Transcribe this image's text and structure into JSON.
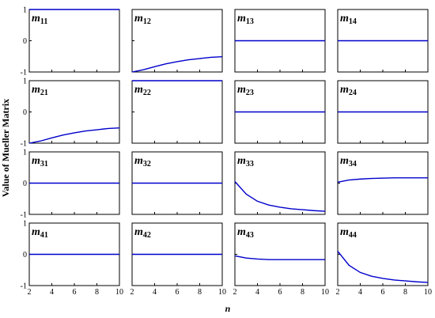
{
  "chart_data": {
    "type": "line",
    "title": "",
    "xlabel": "n",
    "ylabel": "Value of Mueller Matrix",
    "xlim": [
      2,
      10
    ],
    "ylim": [
      -1,
      1
    ],
    "x_ticks": [
      2,
      4,
      6,
      8,
      10
    ],
    "y_ticks": [
      -1,
      0,
      1
    ],
    "grid": false,
    "x": [
      2,
      3,
      4,
      5,
      6,
      7,
      8,
      9,
      10
    ],
    "panels": [
      {
        "name": "m",
        "sub": "11",
        "values": [
          1,
          1,
          1,
          1,
          1,
          1,
          1,
          1,
          1
        ]
      },
      {
        "name": "m",
        "sub": "12",
        "values": [
          -1,
          -0.93,
          -0.83,
          -0.74,
          -0.67,
          -0.61,
          -0.57,
          -0.53,
          -0.51
        ]
      },
      {
        "name": "m",
        "sub": "13",
        "values": [
          0,
          0,
          0,
          0,
          0,
          0,
          0,
          0,
          0
        ]
      },
      {
        "name": "m",
        "sub": "14",
        "values": [
          0,
          0,
          0,
          0,
          0,
          0,
          0,
          0,
          0
        ]
      },
      {
        "name": "m",
        "sub": "21",
        "values": [
          -1,
          -0.93,
          -0.83,
          -0.74,
          -0.67,
          -0.61,
          -0.57,
          -0.53,
          -0.51
        ]
      },
      {
        "name": "m",
        "sub": "22",
        "values": [
          1,
          1,
          1,
          1,
          1,
          1,
          1,
          1,
          1
        ]
      },
      {
        "name": "m",
        "sub": "23",
        "values": [
          0,
          0,
          0,
          0,
          0,
          0,
          0,
          0,
          0
        ]
      },
      {
        "name": "m",
        "sub": "24",
        "values": [
          0,
          0,
          0,
          0,
          0,
          0,
          0,
          0,
          0
        ]
      },
      {
        "name": "m",
        "sub": "31",
        "values": [
          0,
          0,
          0,
          0,
          0,
          0,
          0,
          0,
          0
        ]
      },
      {
        "name": "m",
        "sub": "32",
        "values": [
          0,
          0,
          0,
          0,
          0,
          0,
          0,
          0,
          0
        ]
      },
      {
        "name": "m",
        "sub": "33",
        "values": [
          0.05,
          -0.35,
          -0.58,
          -0.7,
          -0.77,
          -0.82,
          -0.85,
          -0.88,
          -0.9
        ]
      },
      {
        "name": "m",
        "sub": "34",
        "values": [
          0.03,
          0.1,
          0.13,
          0.15,
          0.16,
          0.17,
          0.17,
          0.17,
          0.17
        ]
      },
      {
        "name": "m",
        "sub": "41",
        "values": [
          0,
          0,
          0,
          0,
          0,
          0,
          0,
          0,
          0
        ]
      },
      {
        "name": "m",
        "sub": "42",
        "values": [
          0,
          0,
          0,
          0,
          0,
          0,
          0,
          0,
          0
        ]
      },
      {
        "name": "m",
        "sub": "43",
        "values": [
          -0.05,
          -0.12,
          -0.15,
          -0.17,
          -0.17,
          -0.17,
          -0.17,
          -0.17,
          -0.17
        ]
      },
      {
        "name": "m",
        "sub": "44",
        "values": [
          0.1,
          -0.35,
          -0.58,
          -0.7,
          -0.77,
          -0.82,
          -0.85,
          -0.88,
          -0.9
        ]
      }
    ],
    "line_color": "#0000cc"
  }
}
